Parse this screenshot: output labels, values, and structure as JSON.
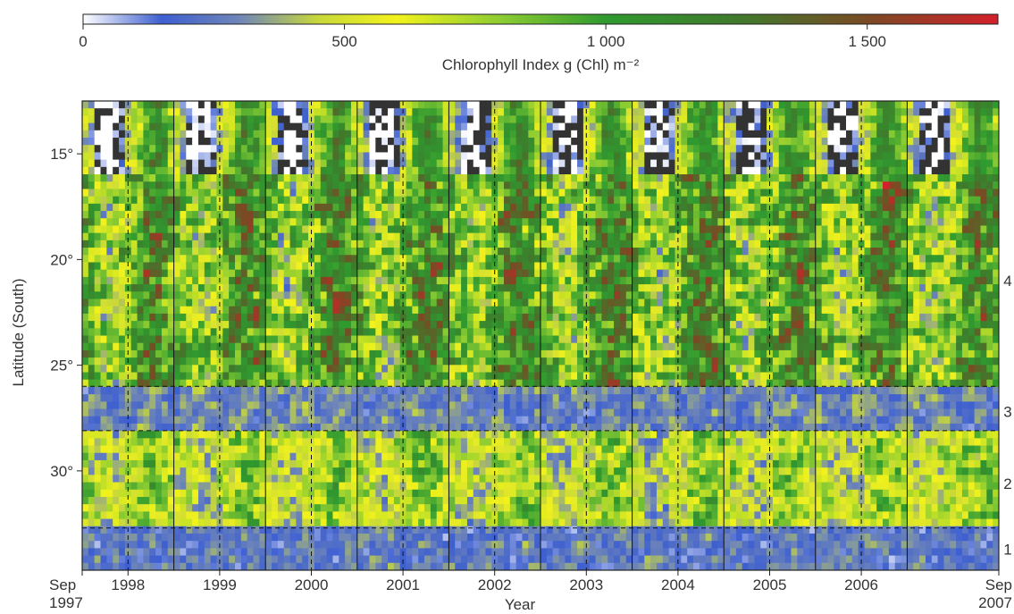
{
  "chart_data": {
    "type": "heatmap",
    "title": "",
    "xlabel": "Year",
    "ylabel": "Latitude (South)",
    "xlim": [
      "1997-09",
      "2007-09"
    ],
    "ylim": [
      12.5,
      34.7
    ],
    "x_tick_labels": [
      {
        "line1": "Sep",
        "line2": "1997",
        "date": "1997-09"
      },
      {
        "line1": "1998",
        "line2": "",
        "date": "1998-03"
      },
      {
        "line1": "1999",
        "line2": "",
        "date": "1999-03"
      },
      {
        "line1": "2000",
        "line2": "",
        "date": "2000-03"
      },
      {
        "line1": "2001",
        "line2": "",
        "date": "2001-03"
      },
      {
        "line1": "2002",
        "line2": "",
        "date": "2002-03"
      },
      {
        "line1": "2003",
        "line2": "",
        "date": "2003-03"
      },
      {
        "line1": "2004",
        "line2": "",
        "date": "2004-03"
      },
      {
        "line1": "2005",
        "line2": "",
        "date": "2005-03"
      },
      {
        "line1": "2006",
        "line2": "",
        "date": "2006-03"
      },
      {
        "line1": "Sep",
        "line2": "2007",
        "date": "2007-09"
      }
    ],
    "y_ticks": [
      {
        "label": "15°",
        "value": 15
      },
      {
        "label": "20°",
        "value": 20
      },
      {
        "label": "25°",
        "value": 25
      },
      {
        "label": "30°",
        "value": 30
      }
    ],
    "region_boundaries_lat": [
      26.0,
      28.1,
      32.7
    ],
    "region_labels": [
      {
        "label": "4",
        "lat": 21.0
      },
      {
        "label": "3",
        "lat": 27.2
      },
      {
        "label": "2",
        "lat": 30.6
      },
      {
        "label": "1",
        "lat": 33.7
      }
    ],
    "colorbar": {
      "label": "Chlorophyll Index g (Chl) m⁻²",
      "min": 0,
      "max": 1750,
      "tick_values": [
        0,
        500,
        1000,
        1500
      ],
      "tick_labels": [
        "0",
        "500",
        "1 000",
        "1 500"
      ],
      "stops": [
        {
          "value": 0,
          "color": "#ffffff"
        },
        {
          "value": 150,
          "color": "#3d5fd0"
        },
        {
          "value": 300,
          "color": "#6f86b8"
        },
        {
          "value": 450,
          "color": "#c8d83a"
        },
        {
          "value": 600,
          "color": "#f2f21c"
        },
        {
          "value": 800,
          "color": "#8ccc32"
        },
        {
          "value": 1000,
          "color": "#2f9a2f"
        },
        {
          "value": 1250,
          "color": "#3f7a2c"
        },
        {
          "value": 1500,
          "color": "#7a4a24"
        },
        {
          "value": 1750,
          "color": "#d4202a"
        }
      ]
    },
    "no_data_color": "#333333",
    "latitude_profile_by_region": [
      {
        "lat_range": [
          12.5,
          16.0
        ],
        "pattern": "low values and no-data gaps in austral summer, high in winter"
      },
      {
        "lat_range": [
          16.0,
          26.0
        ],
        "pattern": "high values (about 800–1500), peaks up to about 1700 in winter"
      },
      {
        "lat_range": [
          26.0,
          28.1
        ],
        "pattern": "low values (about 150–450)"
      },
      {
        "lat_range": [
          28.1,
          32.7
        ],
        "pattern": "intermediate to high values (about 500–1000)"
      },
      {
        "lat_range": [
          32.7,
          34.7
        ],
        "pattern": "low values (about 100–400)"
      }
    ]
  }
}
